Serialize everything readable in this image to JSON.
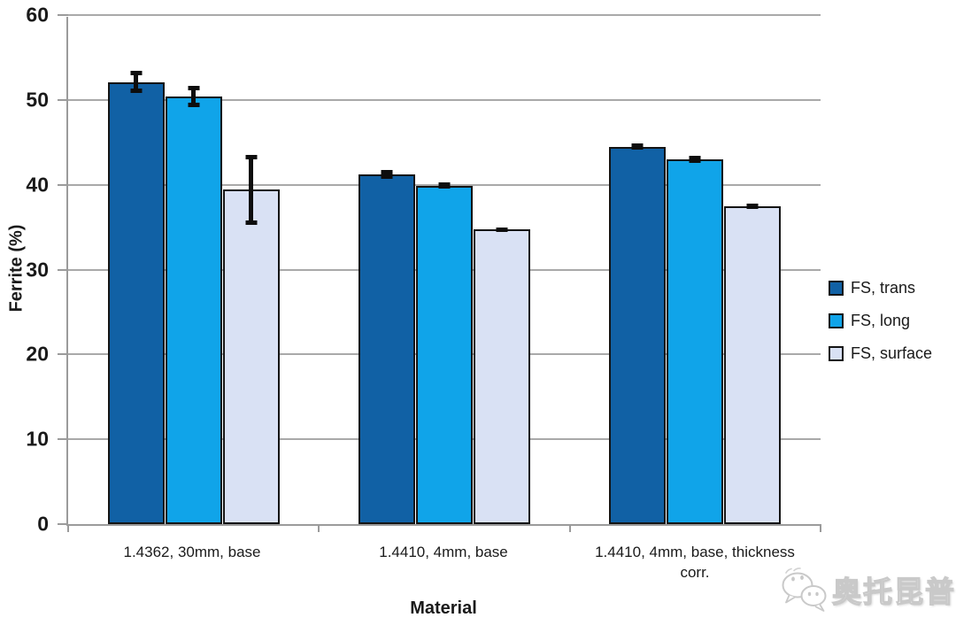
{
  "chart_data": {
    "type": "bar",
    "title": "",
    "xlabel": "Material",
    "ylabel": "Ferrite (%)",
    "ylim": [
      0,
      60
    ],
    "yticks": [
      0,
      10,
      20,
      30,
      40,
      50,
      60
    ],
    "grid": true,
    "legend_position": "right",
    "categories": [
      "1.4362, 30mm, base",
      "1.4410, 4mm, base",
      "1.4410, 4mm, base, thickness\ncorr."
    ],
    "series": [
      {
        "name": "FS, trans",
        "color": "#1161A5",
        "values": [
          52.1,
          41.2,
          44.5
        ],
        "errors": [
          1.3,
          0.5,
          0.4
        ]
      },
      {
        "name": "FS, long",
        "color": "#10A4E9",
        "values": [
          50.4,
          39.9,
          43.0
        ],
        "errors": [
          1.3,
          0.4,
          0.4
        ]
      },
      {
        "name": "FS, surface",
        "color": "#D9E1F4",
        "values": [
          39.4,
          34.7,
          37.5
        ],
        "errors": [
          4.1,
          0.3,
          0.3
        ]
      }
    ],
    "colors": {
      "grid": "#a9a9a9",
      "axis": "#9b9b9b",
      "bar_border": "#141414",
      "error_bar": "#0d0d0d"
    }
  },
  "watermark": {
    "icon": "wechat-icon",
    "text": "奥托昆普"
  }
}
